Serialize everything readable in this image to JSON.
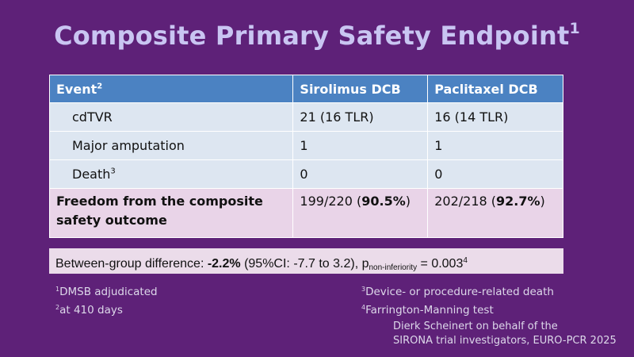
{
  "title": {
    "text": "Composite Primary Safety Endpoint",
    "sup": "1"
  },
  "table": {
    "headers": {
      "event": "Event",
      "event_sup": "2",
      "sirolimus": "Sirolimus DCB",
      "paclitaxel": "Paclitaxel DCB"
    },
    "rows": [
      {
        "event": "cdTVR",
        "sup": "",
        "sirolimus": "21 (16 TLR)",
        "paclitaxel": "16 (14 TLR)"
      },
      {
        "event": "Major amputation",
        "sup": "",
        "sirolimus": "1",
        "paclitaxel": "1"
      },
      {
        "event": "Death",
        "sup": "3",
        "sirolimus": "0",
        "paclitaxel": "0"
      }
    ],
    "freedom": {
      "label": "Freedom from the composite safety outcome",
      "sirolimus_count": "199/220 (",
      "sirolimus_pct": "90.5%",
      "sirolimus_close": ")",
      "paclitaxel_count": "202/218 (",
      "paclitaxel_pct": "92.7%",
      "paclitaxel_close": ")"
    }
  },
  "difference": {
    "prefix": "Between-group difference: ",
    "value": "-2.2%",
    "ci": " (95%CI: -7.7 to 3.2), p",
    "p_sub": "non-inferiority",
    "p_value": " = 0.003",
    "p_sup": "4"
  },
  "footnotes_left": [
    {
      "sup": "1",
      "text": "DMSB adjudicated"
    },
    {
      "sup": "2",
      "text": "at 410 days"
    }
  ],
  "footnotes_right": [
    {
      "sup": "3",
      "text": "Device- or procedure-related death"
    },
    {
      "sup": "4",
      "text": "Farrington-Manning test"
    }
  ],
  "attribution": {
    "line1": "Dierk Scheinert on behalf of the",
    "line2": "SIRONA trial investigators, EURO-PCR  2025"
  },
  "colors": {
    "background": "#5e2178",
    "title": "#c9c5f2",
    "header": "#4b82c2",
    "row": "#dde6f1",
    "highlight_row": "#e9d4e8"
  }
}
